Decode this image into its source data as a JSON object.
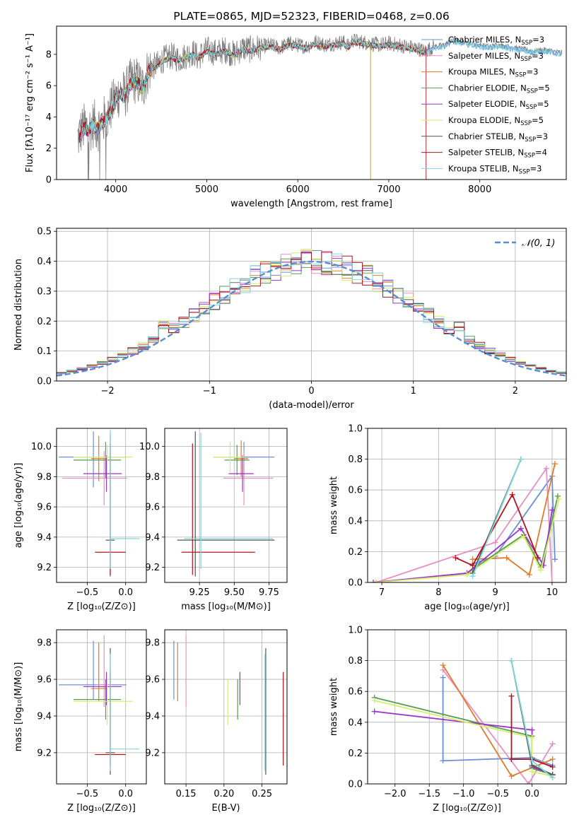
{
  "chart_data": [
    {
      "id": "spectrum",
      "type": "line",
      "title": "PLATE=0865, MJD=52323, FIBERID=0468, z=0.06",
      "xlabel": "wavelength [Angstrom, rest frame]",
      "ylabel": "Flux [fλ10⁻¹⁷ erg cm⁻² s⁻¹ A⁻¹]",
      "xlim": [
        3350,
        8950
      ],
      "ylim": [
        0,
        9.8
      ],
      "xticks": [
        4000,
        5000,
        6000,
        7000,
        8000
      ],
      "yticks": [
        0,
        2,
        4,
        6,
        8
      ],
      "data_color": "#808080",
      "data_x": [
        3580,
        3620,
        3660,
        3700,
        3760,
        3800,
        3850,
        3900,
        3950,
        4000,
        4050,
        4100,
        4150,
        4200,
        4250,
        4300,
        4350,
        4400,
        4450,
        4500,
        4600,
        4700,
        4800,
        4860,
        4900,
        5000,
        5100,
        5200,
        5300,
        5400,
        5500,
        5600,
        5700,
        5800,
        5900,
        6000,
        6100,
        6200,
        6300,
        6400,
        6500,
        6563,
        6600,
        6700,
        6800,
        6900,
        7000,
        7100,
        7200,
        7300,
        7400,
        7500,
        7600,
        7700,
        7800,
        7900,
        8000,
        8100,
        8200,
        8300,
        8400,
        8500,
        8600,
        8700,
        8800,
        8900
      ],
      "data_y": [
        2.6,
        3.1,
        3.4,
        3.2,
        3.6,
        3.3,
        3.7,
        4.0,
        4.6,
        5.2,
        5.6,
        5.4,
        6.1,
        6.4,
        6.2,
        5.9,
        6.9,
        7.2,
        7.3,
        7.6,
        7.9,
        7.7,
        8.0,
        8.1,
        7.8,
        8.3,
        8.1,
        8.3,
        8.0,
        8.4,
        8.3,
        8.5,
        8.6,
        8.4,
        8.7,
        8.6,
        8.5,
        8.8,
        8.6,
        8.7,
        8.8,
        8.5,
        8.9,
        8.8,
        8.7,
        8.6,
        8.7,
        8.6,
        8.5,
        8.4,
        8.2,
        8.5,
        8.6,
        8.9,
        8.8,
        8.7,
        8.6,
        8.5,
        8.6,
        8.5,
        8.4,
        8.3,
        8.2,
        8.3,
        8.2,
        8.1
      ],
      "legend_location": "right",
      "legend": [
        {
          "label": "Chabrier MILES, N",
          "sub": "SSP",
          "tail": "=3",
          "color": "#6a8fd8"
        },
        {
          "label": "Salpeter MILES, N",
          "sub": "SSP",
          "tail": "=3",
          "color": "#e88ec4"
        },
        {
          "label": "Kroupa MILES, N",
          "sub": "SSP",
          "tail": "=3",
          "color": "#e07b2c"
        },
        {
          "label": "Chabrier ELODIE, N",
          "sub": "SSP",
          "tail": "=5",
          "color": "#5a9a5a"
        },
        {
          "label": "Salpeter ELODIE, N",
          "sub": "SSP",
          "tail": "=5",
          "color": "#9b33c8"
        },
        {
          "label": "Kroupa ELODIE, N",
          "sub": "SSP",
          "tail": "=5",
          "color": "#d4ef6a"
        },
        {
          "label": "Chabrier STELIB, N",
          "sub": "SSP",
          "tail": "=3",
          "color": "#555555"
        },
        {
          "label": "Salpeter STELIB, N",
          "sub": "SSP",
          "tail": "=4",
          "color": "#b0141e"
        },
        {
          "label": "Kroupa STELIB, N",
          "sub": "SSP",
          "tail": "=3",
          "color": "#7fd6dc"
        }
      ]
    },
    {
      "id": "residuals",
      "type": "line",
      "xlabel": "(data-model)/error",
      "ylabel": "Normed distribution",
      "xlim": [
        -2.5,
        2.5
      ],
      "ylim": [
        0,
        0.51
      ],
      "xticks": [
        -2,
        -1,
        0,
        1,
        2
      ],
      "yticks": [
        0.0,
        0.1,
        0.2,
        0.3,
        0.4,
        0.5
      ],
      "grid": true,
      "gaussian_label": "𝒩(0, 1)",
      "gaussian_color": "#5b8bd5",
      "bin_width": 0.1,
      "bin_start": -2.5
    },
    {
      "id": "age_vs_Z",
      "type": "scatter",
      "xlabel": "Z [log₁₀(Z/Z⊙)]",
      "ylabel": "age  [log₁₀(age/yr)]",
      "xlim": [
        -0.9,
        0.27
      ],
      "ylim": [
        9.1,
        10.12
      ],
      "xticks": [
        -0.5,
        0.0
      ],
      "yticks": [
        9.2,
        9.4,
        9.6,
        9.8,
        10.0
      ],
      "grid": true,
      "points": [
        {
          "color": "#6a8fd8",
          "x": -0.42,
          "xerr": [
            0.45,
            0.43
          ],
          "y": 9.93,
          "yerr": [
            0.2,
            0.17
          ]
        },
        {
          "color": "#e88ec4",
          "x": -0.28,
          "xerr": [
            0.55,
            0.3
          ],
          "y": 9.79,
          "yerr": [
            0.18,
            0.18
          ]
        },
        {
          "color": "#e07b2c",
          "x": -0.35,
          "xerr": [
            0.1,
            0.1
          ],
          "y": 9.92,
          "yerr": [
            0.15,
            0.15
          ]
        },
        {
          "color": "#5a9a5a",
          "x": -0.26,
          "xerr": [
            0.42,
            0.2
          ],
          "y": 9.91,
          "yerr": [
            0.12,
            0.12
          ]
        },
        {
          "color": "#9b33c8",
          "x": -0.25,
          "xerr": [
            0.3,
            0.2
          ],
          "y": 9.82,
          "yerr": [
            0.12,
            0.12
          ]
        },
        {
          "color": "#d4ef6a",
          "x": -0.24,
          "xerr": [
            0.44,
            0.33
          ],
          "y": 9.93,
          "yerr": [
            0.1,
            0.08
          ]
        },
        {
          "color": "#555555",
          "x": -0.2,
          "xerr": [
            0.06,
            0.06
          ],
          "y": 9.38,
          "yerr": [
            0.24,
            0.7
          ]
        },
        {
          "color": "#b0141e",
          "x": -0.2,
          "xerr": [
            0.2,
            0.2
          ],
          "y": 9.3,
          "yerr": [
            0.15,
            0.72
          ]
        },
        {
          "color": "#7fd6dc",
          "x": -0.2,
          "xerr": [
            0.01,
            0.38
          ],
          "y": 9.39,
          "yerr": [
            0.2,
            0.72
          ]
        }
      ]
    },
    {
      "id": "age_vs_mass",
      "type": "scatter",
      "xlabel": "mass [log₁₀(M/M⊙)]",
      "ylabel": "",
      "xlim": [
        9.0,
        9.88
      ],
      "ylim": [
        9.1,
        10.12
      ],
      "xticks": [
        9.25,
        9.5,
        9.75
      ],
      "yticks": [
        9.2,
        9.4,
        9.6,
        9.8,
        10.0
      ],
      "grid": true,
      "points": [
        {
          "color": "#6a8fd8",
          "x": 9.57,
          "xerr": [
            0.22,
            0.22
          ],
          "y": 9.93,
          "yerr": [
            0.15,
            0.1
          ]
        },
        {
          "color": "#e88ec4",
          "x": 9.57,
          "xerr": [
            0.15,
            0.21
          ],
          "y": 9.79,
          "yerr": [
            0.18,
            0.18
          ]
        },
        {
          "color": "#e07b2c",
          "x": 9.55,
          "xerr": [
            0.05,
            0.05
          ],
          "y": 9.92,
          "yerr": [
            0.12,
            0.12
          ]
        },
        {
          "color": "#5a9a5a",
          "x": 9.52,
          "xerr": [
            0.09,
            0.09
          ],
          "y": 9.91,
          "yerr": [
            0.1,
            0.1
          ]
        },
        {
          "color": "#9b33c8",
          "x": 9.56,
          "xerr": [
            0.1,
            0.08
          ],
          "y": 9.82,
          "yerr": [
            0.12,
            0.12
          ]
        },
        {
          "color": "#d4ef6a",
          "x": 9.47,
          "xerr": [
            0.12,
            0.1
          ],
          "y": 9.93,
          "yerr": [
            0.1,
            0.1
          ]
        },
        {
          "color": "#555555",
          "x": 9.22,
          "xerr": [
            0.13,
            0.57
          ],
          "y": 9.38,
          "yerr": [
            0.24,
            0.72
          ]
        },
        {
          "color": "#b0141e",
          "x": 9.2,
          "xerr": [
            0.08,
            0.45
          ],
          "y": 9.3,
          "yerr": [
            0.15,
            0.72
          ]
        },
        {
          "color": "#7fd6dc",
          "x": 9.26,
          "xerr": [
            0.12,
            0.52
          ],
          "y": 9.39,
          "yerr": [
            0.2,
            0.7
          ]
        }
      ]
    },
    {
      "id": "weight_vs_age",
      "type": "line",
      "xlabel": "age  [log₁₀(age/yr)]",
      "ylabel": "mass weight",
      "xlim": [
        6.75,
        10.25
      ],
      "ylim": [
        0,
        1.0
      ],
      "xticks": [
        7,
        8,
        9,
        10
      ],
      "yticks": [
        0.0,
        0.2,
        0.4,
        0.6,
        0.8,
        1.0
      ],
      "grid": true,
      "series": [
        {
          "color": "#6a8fd8",
          "x": [
            8.6,
            9.0,
            10.0,
            10.05
          ],
          "y": [
            0.12,
            0.17,
            0.69,
            0.15
          ]
        },
        {
          "color": "#e88ec4",
          "x": [
            6.9,
            9.0,
            9.9,
            10.0
          ],
          "y": [
            0.0,
            0.26,
            0.74,
            0.0
          ]
        },
        {
          "color": "#e07b2c",
          "x": [
            8.6,
            9.2,
            9.6,
            10.05
          ],
          "y": [
            0.15,
            0.16,
            0.05,
            0.77
          ]
        },
        {
          "color": "#5a9a5a",
          "x": [
            6.9,
            8.5,
            9.5,
            9.8,
            10.1
          ],
          "y": [
            0.0,
            0.06,
            0.31,
            0.1,
            0.56
          ]
        },
        {
          "color": "#9b33c8",
          "x": [
            6.85,
            8.5,
            9.45,
            9.85,
            10.0
          ],
          "y": [
            0.0,
            0.06,
            0.35,
            0.11,
            0.47
          ]
        },
        {
          "color": "#d4ef6a",
          "x": [
            6.9,
            8.5,
            9.5,
            9.8,
            10.12
          ],
          "y": [
            0.0,
            0.05,
            0.3,
            0.08,
            0.54
          ]
        },
        {
          "color": "#555555",
          "x": [
            8.6,
            9.45
          ],
          "y": [
            0.06,
            0.8
          ]
        },
        {
          "color": "#b0141e",
          "x": [
            8.3,
            8.6,
            9.3,
            9.75
          ],
          "y": [
            0.16,
            0.11,
            0.57,
            0.16
          ]
        },
        {
          "color": "#7fd6dc",
          "x": [
            8.6,
            9.45
          ],
          "y": [
            0.04,
            0.8
          ]
        }
      ]
    },
    {
      "id": "mass_vs_Z",
      "type": "scatter",
      "xlabel": "Z [log₁₀(Z/Z⊙)]",
      "ylabel": "mass [log₁₀(M/M⊙)]",
      "xlim": [
        -0.9,
        0.27
      ],
      "ylim": [
        9.03,
        9.87
      ],
      "xticks": [
        -0.5,
        0.0
      ],
      "yticks": [
        9.2,
        9.4,
        9.6,
        9.8
      ],
      "grid": true,
      "points": [
        {
          "color": "#6a8fd8",
          "x": -0.42,
          "xerr": [
            0.45,
            0.43
          ],
          "y": 9.57,
          "yerr": [
            0.08,
            0.24
          ]
        },
        {
          "color": "#e88ec4",
          "x": -0.28,
          "xerr": [
            0.1,
            0.1
          ],
          "y": 9.57,
          "yerr": [
            0.12,
            0.27
          ]
        },
        {
          "color": "#e07b2c",
          "x": -0.35,
          "xerr": [
            0.1,
            0.1
          ],
          "y": 9.55,
          "yerr": [
            0.07,
            0.25
          ]
        },
        {
          "color": "#5a9a5a",
          "x": -0.26,
          "xerr": [
            0.42,
            0.2
          ],
          "y": 9.49,
          "yerr": [
            0.11,
            0.11
          ]
        },
        {
          "color": "#9b33c8",
          "x": -0.25,
          "xerr": [
            0.3,
            0.2
          ],
          "y": 9.56,
          "yerr": [
            0.1,
            0.08
          ]
        },
        {
          "color": "#d4ef6a",
          "x": -0.24,
          "xerr": [
            0.44,
            0.33
          ],
          "y": 9.48,
          "yerr": [
            0.13,
            0.12
          ]
        },
        {
          "color": "#555555",
          "x": -0.2,
          "xerr": [
            0.06,
            0.06
          ],
          "y": 9.2,
          "yerr": [
            0.12,
            0.57
          ]
        },
        {
          "color": "#b0141e",
          "x": -0.2,
          "xerr": [
            0.2,
            0.2
          ],
          "y": 9.19,
          "yerr": [
            0.06,
            0.45
          ]
        },
        {
          "color": "#7fd6dc",
          "x": -0.2,
          "xerr": [
            0.01,
            0.38
          ],
          "y": 9.22,
          "yerr": [
            0.12,
            0.52
          ]
        }
      ]
    },
    {
      "id": "mass_vs_ebv",
      "type": "scatter",
      "xlabel": "E(B-V)",
      "ylabel": "",
      "xlim": [
        0.122,
        0.283
      ],
      "ylim": [
        9.03,
        9.87
      ],
      "xticks": [
        0.15,
        0.2,
        0.25
      ],
      "yticks": [
        9.2,
        9.4,
        9.6,
        9.8
      ],
      "grid": true,
      "points": [
        {
          "color": "#6a8fd8",
          "x": 0.134,
          "xerr": [
            0,
            0
          ],
          "y": 9.57,
          "yerr": [
            0.08,
            0.24
          ]
        },
        {
          "color": "#e88ec4",
          "x": 0.15,
          "xerr": [
            0,
            0
          ],
          "y": 9.57,
          "yerr": [
            0.12,
            0.27
          ]
        },
        {
          "color": "#e07b2c",
          "x": 0.139,
          "xerr": [
            0,
            0
          ],
          "y": 9.55,
          "yerr": [
            0.07,
            0.25
          ]
        },
        {
          "color": "#5a9a5a",
          "x": 0.218,
          "xerr": [
            0,
            0
          ],
          "y": 9.49,
          "yerr": [
            0.11,
            0.11
          ]
        },
        {
          "color": "#9b33c8",
          "x": 0.221,
          "xerr": [
            0,
            0
          ],
          "y": 9.56,
          "yerr": [
            0.1,
            0.08
          ]
        },
        {
          "color": "#d4ef6a",
          "x": 0.205,
          "xerr": [
            0,
            0
          ],
          "y": 9.48,
          "yerr": [
            0.13,
            0.12
          ]
        },
        {
          "color": "#555555",
          "x": 0.255,
          "xerr": [
            0,
            0
          ],
          "y": 9.2,
          "yerr": [
            0.12,
            0.57
          ]
        },
        {
          "color": "#b0141e",
          "x": 0.278,
          "xerr": [
            0,
            0
          ],
          "y": 9.19,
          "yerr": [
            0.06,
            0.45
          ]
        },
        {
          "color": "#7fd6dc",
          "x": 0.254,
          "xerr": [
            0,
            0
          ],
          "y": 9.22,
          "yerr": [
            0.12,
            0.52
          ]
        }
      ]
    },
    {
      "id": "weight_vs_Z",
      "type": "line",
      "xlabel": "Z [log₁₀(Z/Z⊙)]",
      "ylabel": "mass weight",
      "xlim": [
        -2.4,
        0.5
      ],
      "ylim": [
        0,
        1.0
      ],
      "xticks": [
        -2.0,
        -1.5,
        -1.0,
        -0.5,
        0.0
      ],
      "yticks": [
        0.0,
        0.2,
        0.4,
        0.6,
        0.8,
        1.0
      ],
      "grid": true,
      "series": [
        {
          "color": "#6a8fd8",
          "x": [
            -1.3,
            -1.3,
            0.0,
            0.3
          ],
          "y": [
            0.69,
            0.15,
            0.17,
            0.12
          ]
        },
        {
          "color": "#e88ec4",
          "x": [
            -1.3,
            -0.05,
            0.3
          ],
          "y": [
            0.74,
            0.0,
            0.26
          ]
        },
        {
          "color": "#e07b2c",
          "x": [
            -1.3,
            -0.3,
            0.3
          ],
          "y": [
            0.77,
            0.05,
            0.16
          ]
        },
        {
          "color": "#5a9a5a",
          "x": [
            -2.3,
            0.0,
            0.0,
            0.3
          ],
          "y": [
            0.56,
            0.31,
            0.1,
            0.06
          ]
        },
        {
          "color": "#9b33c8",
          "x": [
            -2.3,
            0.0,
            0.0,
            0.3
          ],
          "y": [
            0.47,
            0.35,
            0.11,
            0.06
          ]
        },
        {
          "color": "#d4ef6a",
          "x": [
            -2.3,
            0.0,
            0.0,
            0.3
          ],
          "y": [
            0.54,
            0.3,
            0.08,
            0.05
          ]
        },
        {
          "color": "#555555",
          "x": [
            -0.3,
            0.0,
            0.3
          ],
          "y": [
            0.8,
            0.12,
            0.06
          ]
        },
        {
          "color": "#b0141e",
          "x": [
            -0.3,
            -0.3,
            0.0,
            0.3
          ],
          "y": [
            0.57,
            0.16,
            0.16,
            0.11
          ]
        },
        {
          "color": "#7fd6dc",
          "x": [
            -0.3,
            0.0,
            0.3
          ],
          "y": [
            0.8,
            0.15,
            0.04
          ]
        }
      ]
    }
  ]
}
